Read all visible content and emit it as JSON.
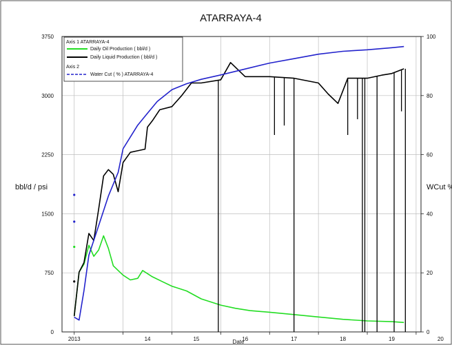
{
  "chart_data": {
    "type": "line",
    "title": "ATARRAYA-4",
    "xlabel": "Date",
    "ylabel_left": "bbl/d / psi",
    "ylabel_right": "WCut %",
    "x_ticks": [
      "2013",
      "14",
      "15",
      "16",
      "17",
      "18",
      "19",
      "20"
    ],
    "x_tick_years": [
      2013,
      2014,
      2015,
      2016,
      2017,
      2018,
      2019,
      2020
    ],
    "xlim": [
      2012.75,
      2020.1
    ],
    "y_left_ticks": [
      "0",
      "750",
      "1500",
      "2250",
      "3000",
      "3750"
    ],
    "y_left_values": [
      0,
      750,
      1500,
      2250,
      3000,
      3750
    ],
    "y_left_lim": [
      0,
      3750
    ],
    "y_right_ticks": [
      "0",
      "20",
      "40",
      "60",
      "80",
      "100"
    ],
    "y_right_values": [
      0,
      20,
      40,
      60,
      80,
      100
    ],
    "y_right_lim": [
      0,
      100
    ],
    "grid": true,
    "legend": {
      "position": "top-left",
      "axis1_header": "Axis 1  ATARRAYA-4",
      "axis2_header": "Axis 2",
      "entries": [
        {
          "label": "Daily Oil Production ( bbl/d )",
          "color": "#22dd22",
          "style": "solid"
        },
        {
          "label": "Daily Liquid Production ( bbl/d )",
          "color": "#000000",
          "style": "solid"
        },
        {
          "label": "Water Cut ( % ) ATARRAYA-4",
          "color": "#2222cc",
          "style": "dashed"
        }
      ]
    },
    "series": [
      {
        "name": "Daily Oil Production ( bbl/d )",
        "axis": "left",
        "color": "#22dd22",
        "x": [
          2013.0,
          2013.1,
          2013.2,
          2013.3,
          2013.4,
          2013.5,
          2013.6,
          2013.7,
          2013.8,
          2013.9,
          2014.0,
          2014.15,
          2014.3,
          2014.4,
          2014.6,
          2014.8,
          2015.0,
          2015.3,
          2015.6,
          2016.0,
          2016.3,
          2016.6,
          2017.0,
          2017.5,
          2018.0,
          2018.5,
          2019.0,
          2019.5,
          2019.75
        ],
        "y": [
          200,
          760,
          860,
          1100,
          960,
          1040,
          1220,
          1060,
          840,
          780,
          720,
          660,
          680,
          780,
          700,
          640,
          580,
          520,
          420,
          340,
          300,
          270,
          250,
          220,
          190,
          160,
          140,
          130,
          120
        ]
      },
      {
        "name": "Daily Liquid Production ( bbl/d )",
        "axis": "left",
        "color": "#000000",
        "x": [
          2013.0,
          2013.1,
          2013.2,
          2013.3,
          2013.4,
          2013.5,
          2013.6,
          2013.7,
          2013.8,
          2013.9,
          2014.0,
          2014.15,
          2014.3,
          2014.45,
          2014.5,
          2014.6,
          2014.75,
          2015.0,
          2015.2,
          2015.4,
          2015.6,
          2016.0,
          2016.2,
          2016.5,
          2017.0,
          2017.5,
          2018.0,
          2018.2,
          2018.4,
          2018.5,
          2018.6,
          2019.0,
          2019.3,
          2019.5,
          2019.75
        ],
        "y": [
          200,
          760,
          880,
          1250,
          1160,
          1560,
          1980,
          2060,
          2000,
          1780,
          2150,
          2280,
          2300,
          2320,
          2600,
          2680,
          2820,
          2860,
          3000,
          3160,
          3160,
          3200,
          3420,
          3240,
          3240,
          3220,
          3160,
          3020,
          2900,
          3060,
          3220,
          3220,
          3260,
          3280,
          3340
        ]
      },
      {
        "name": "Water Cut ( % ) ATARRAYA-4",
        "axis": "right",
        "color": "#2222cc",
        "x": [
          2013.0,
          2013.1,
          2013.2,
          2013.3,
          2013.5,
          2013.7,
          2013.9,
          2014.0,
          2014.15,
          2014.3,
          2014.5,
          2014.7,
          2015.0,
          2015.3,
          2015.6,
          2016.0,
          2016.5,
          2017.0,
          2017.5,
          2018.0,
          2018.5,
          2019.0,
          2019.5,
          2019.75
        ],
        "y": [
          5,
          4,
          14,
          26,
          36,
          46,
          54,
          62,
          66,
          70,
          74,
          78,
          82,
          84,
          85.5,
          87,
          89,
          91,
          92.5,
          94,
          95,
          95.5,
          96.2,
          96.6
        ]
      }
    ],
    "liquid_dropouts": [
      {
        "x": 2015.95,
        "to": 0
      },
      {
        "x": 2017.1,
        "to": 2500
      },
      {
        "x": 2017.3,
        "to": 2620
      },
      {
        "x": 2017.5,
        "to": 0
      },
      {
        "x": 2018.6,
        "to": 2500
      },
      {
        "x": 2018.8,
        "to": 2700
      },
      {
        "x": 2018.9,
        "to": 0
      },
      {
        "x": 2018.95,
        "to": 0
      },
      {
        "x": 2019.2,
        "to": 0
      },
      {
        "x": 2019.55,
        "to": 0
      },
      {
        "x": 2019.7,
        "to": 2800
      },
      {
        "x": 2019.78,
        "to": 0
      }
    ],
    "scatter_points": [
      {
        "x": 2013.0,
        "y": 1740,
        "color": "#2222cc"
      },
      {
        "x": 2013.0,
        "y": 1400,
        "color": "#2222cc"
      },
      {
        "x": 2013.0,
        "y": 1080,
        "color": "#22dd22"
      },
      {
        "x": 2013.0,
        "y": 640,
        "color": "#000000"
      }
    ]
  }
}
